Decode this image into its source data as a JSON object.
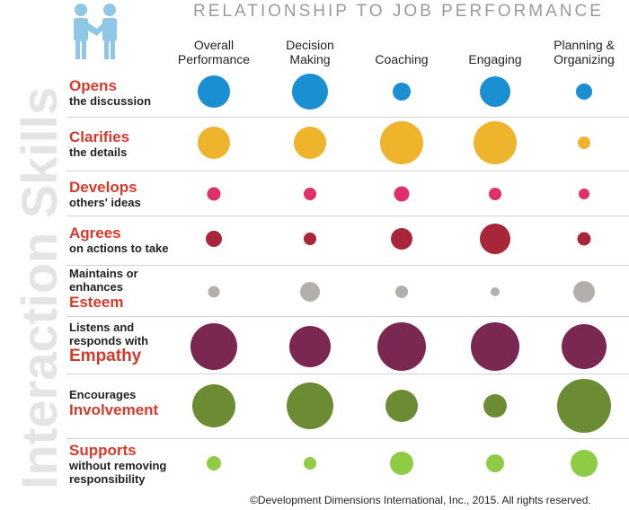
{
  "title": "RELATIONSHIP TO JOB PERFORMANCE",
  "side_title": "Interaction Skills",
  "icon": "handshake-people-icon",
  "colors": {
    "icon": "#8fc7e6",
    "label_red": "#d63a2c",
    "opens": "#1a8fd1",
    "clarifies": "#f0b32c",
    "develops": "#e0306a",
    "agrees": "#a82638",
    "maintains": "#b3b0ab",
    "listens": "#7a2752",
    "encourages": "#6b8c33",
    "supports": "#8fcb44"
  },
  "columns": [
    {
      "lines": [
        "Overall",
        "Performance"
      ]
    },
    {
      "lines": [
        "Decision",
        "Making"
      ]
    },
    {
      "lines": [
        "Coaching"
      ]
    },
    {
      "lines": [
        "Engaging"
      ]
    },
    {
      "lines": [
        "Planning &",
        "Organizing"
      ]
    }
  ],
  "rows": [
    {
      "before": [],
      "main": "Opens",
      "after": [
        "the discussion"
      ]
    },
    {
      "before": [],
      "main": "Clarifies",
      "after": [
        "the details"
      ]
    },
    {
      "before": [],
      "main": "Develops",
      "after": [
        "others' ideas"
      ]
    },
    {
      "before": [],
      "main": "Agrees",
      "after": [
        "on actions to take"
      ]
    },
    {
      "before": [
        "Maintains or",
        "enhances"
      ],
      "main": "Esteem",
      "after": []
    },
    {
      "before": [
        "Listens and",
        "responds with"
      ],
      "main": "Empathy",
      "after": []
    },
    {
      "before": [
        "Encourages"
      ],
      "main": "Involvement",
      "after": []
    },
    {
      "before": [],
      "main": "Supports",
      "after": [
        "without removing",
        "responsibility"
      ]
    }
  ],
  "copyright": "©Development Dimensions International, Inc., 2015. All rights reserved.",
  "chart_data": {
    "type": "bubble-matrix",
    "title": "RELATIONSHIP TO JOB PERFORMANCE",
    "x_categories": [
      "Overall Performance",
      "Decision Making",
      "Coaching",
      "Engaging",
      "Planning & Organizing"
    ],
    "y_categories": [
      "Opens the discussion",
      "Clarifies the details",
      "Develops others' ideas",
      "Agrees on actions to take",
      "Maintains or enhances Esteem",
      "Listens and responds with Empathy",
      "Encourages Involvement",
      "Supports without removing responsibility"
    ],
    "size_scale": "relative bubble diameter (max = 60)",
    "series": [
      {
        "name": "Opens the discussion",
        "values": [
          36,
          40,
          20,
          34,
          18
        ]
      },
      {
        "name": "Clarifies the details",
        "values": [
          36,
          36,
          48,
          48,
          14
        ]
      },
      {
        "name": "Develops others' ideas",
        "values": [
          15,
          14,
          17,
          14,
          12
        ]
      },
      {
        "name": "Agrees on actions to take",
        "values": [
          18,
          14,
          24,
          34,
          15
        ]
      },
      {
        "name": "Maintains or enhances Esteem",
        "values": [
          13,
          22,
          14,
          10,
          24
        ]
      },
      {
        "name": "Listens and responds with Empathy",
        "values": [
          52,
          46,
          54,
          54,
          50
        ]
      },
      {
        "name": "Encourages Involvement",
        "values": [
          48,
          52,
          36,
          26,
          60
        ]
      },
      {
        "name": "Supports without removing responsibility",
        "values": [
          16,
          14,
          26,
          20,
          30
        ]
      }
    ]
  }
}
